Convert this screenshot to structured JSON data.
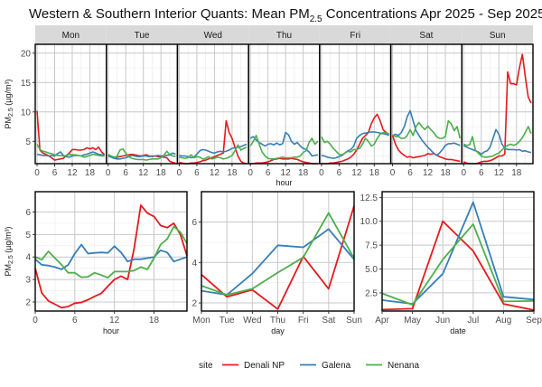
{
  "title": {
    "main": "Western & Southern Interior Quants: Mean PM",
    "sub": "2.5",
    "rest": " Concentrations Apr 2025 - Sep 2025"
  },
  "legend": {
    "title": "site",
    "entries": [
      {
        "label": "Denali NP",
        "color": "#E41A1C"
      },
      {
        "label": "Galena",
        "color": "#377EB8"
      },
      {
        "label": "Nenana",
        "color": "#4DAF4A"
      }
    ],
    "placement": "bottom"
  },
  "chart_data": [
    {
      "type": "line",
      "name": "hour-by-weekday",
      "title": "",
      "xlabel": "hour",
      "ylabel": "PM2.5 (µg/m³)",
      "facets": [
        "Mon",
        "Tue",
        "Wed",
        "Thu",
        "Fri",
        "Sat",
        "Sun"
      ],
      "xticks": [
        0,
        6,
        12,
        18
      ],
      "xlim": [
        0,
        23
      ],
      "ylim": [
        1.2,
        21.5
      ],
      "yticks": [
        5,
        10,
        15,
        20
      ],
      "grid": true,
      "series": [
        {
          "name": "Denali NP",
          "values": {
            "Mon": [
              10.2,
              3.5,
              3.0,
              2.8,
              2.5,
              2.2,
              1.8,
              1.9,
              2.0,
              2.1,
              2.6,
              3.0,
              3.6,
              3.6,
              3.5,
              3.5,
              3.6,
              3.9,
              3.7,
              3.9,
              3.6,
              4.0,
              3.2,
              2.7
            ],
            "Tue": [
              2.5,
              2.4,
              2.2,
              2.3,
              2.4,
              2.5,
              2.6,
              2.7,
              2.8,
              2.7,
              2.6,
              2.5,
              2.6,
              2.7,
              2.5,
              2.4,
              2.5,
              2.4,
              2.4,
              2.3,
              2.2,
              1.6,
              1.4,
              1.3
            ],
            "Wed": [
              1.4,
              1.3,
              1.2,
              1.2,
              1.3,
              1.3,
              1.4,
              1.5,
              1.7,
              1.8,
              2.0,
              2.2,
              2.4,
              2.6,
              2.8,
              3.0,
              8.5,
              6.5,
              5.5,
              4.0,
              2.5,
              1.6,
              1.3,
              1.2
            ],
            "Thu": [
              1.2,
              1.2,
              1.3,
              1.3,
              1.3,
              1.4,
              1.5,
              1.7,
              1.9,
              2.0,
              2.1,
              2.0,
              2.0,
              2.0,
              2.1,
              2.0,
              1.9,
              1.7,
              1.5,
              1.4,
              1.3,
              1.2,
              1.2,
              1.2
            ],
            "Fri": [
              1.2,
              1.2,
              1.2,
              1.3,
              1.3,
              1.4,
              1.5,
              1.6,
              1.8,
              2.0,
              2.3,
              2.8,
              3.5,
              4.5,
              5.5,
              6.0,
              6.5,
              8.0,
              9.0,
              9.6,
              8.5,
              7.0,
              6.5,
              6.2
            ],
            "Sat": [
              6.0,
              4.5,
              3.5,
              3.0,
              2.6,
              2.3,
              2.4,
              2.2,
              2.3,
              2.4,
              2.5,
              2.6,
              2.9,
              2.8,
              2.9,
              2.7,
              2.4,
              2.2,
              2.0,
              1.9,
              1.9,
              1.8,
              1.7,
              1.6
            ],
            "Sun": [
              1.5,
              1.3,
              1.2,
              1.2,
              1.2,
              1.3,
              1.5,
              1.6,
              1.6,
              1.7,
              1.9,
              2.2,
              2.5,
              2.5,
              2.8,
              16.8,
              14.8,
              14.8,
              14.6,
              17.5,
              19.8,
              16.0,
              12.5,
              11.5
            ]
          }
        },
        {
          "name": "Galena",
          "values": {
            "Mon": [
              2.8,
              2.7,
              2.6,
              2.6,
              2.5,
              2.6,
              2.5,
              2.9,
              3.2,
              2.6,
              2.4,
              2.3,
              2.5,
              2.6,
              2.6,
              2.5,
              2.7,
              2.8,
              3.0,
              3.2,
              3.0,
              2.8,
              2.7,
              2.6
            ],
            "Tue": [
              2.5,
              2.3,
              2.1,
              2.0,
              2.0,
              2.1,
              2.2,
              2.4,
              2.6,
              2.5,
              2.4,
              2.4,
              2.5,
              2.5,
              2.4,
              2.5,
              2.5,
              2.6,
              2.5,
              2.6,
              2.6,
              2.7,
              3.0,
              2.8
            ],
            "Wed": [
              2.6,
              2.5,
              2.5,
              2.4,
              2.2,
              2.3,
              2.8,
              3.4,
              3.6,
              3.5,
              3.3,
              3.1,
              3.0,
              3.2,
              3.3,
              3.2,
              3.3,
              3.5,
              3.8,
              3.9,
              4.0,
              4.1,
              4.3,
              4.5
            ],
            "Thu": [
              5.5,
              5.8,
              5.2,
              4.8,
              4.5,
              4.2,
              4.5,
              4.6,
              4.4,
              4.7,
              4.4,
              4.6,
              6.5,
              6.1,
              5.0,
              4.5,
              4.8,
              4.2,
              3.8,
              3.6,
              3.2,
              2.5,
              2.6,
              2.7
            ],
            "Fri": [
              2.6,
              2.5,
              2.3,
              2.2,
              2.1,
              2.2,
              2.4,
              2.6,
              3.0,
              3.4,
              3.6,
              4.2,
              5.5,
              6.0,
              6.3,
              6.4,
              6.5,
              6.6,
              6.6,
              6.5,
              6.4,
              6.3,
              6.2,
              6.0
            ],
            "Sat": [
              6.0,
              6.2,
              6.0,
              6.5,
              7.5,
              9.2,
              10.2,
              8.5,
              6.8,
              6.0,
              5.2,
              4.6,
              4.0,
              3.5,
              3.0,
              2.6,
              3.0,
              3.6,
              4.3,
              4.6,
              4.6,
              4.7,
              4.5,
              4.3
            ],
            "Sun": [
              4.3,
              4.0,
              3.8,
              3.6,
              3.4,
              3.2,
              2.8,
              3.2,
              3.4,
              4.0,
              5.5,
              7.0,
              6.2,
              4.6,
              3.8,
              3.6,
              3.6,
              3.6,
              3.5,
              3.6,
              3.3,
              3.4,
              3.2,
              3.1
            ]
          }
        },
        {
          "name": "Nenana",
          "values": {
            "Mon": [
              4.5,
              3.6,
              3.3,
              3.2,
              3.0,
              2.9,
              2.7,
              2.6,
              2.6,
              2.5,
              2.6,
              2.8,
              2.7,
              2.7,
              2.6,
              2.5,
              2.3,
              2.4,
              2.6,
              2.8,
              2.7,
              2.6,
              2.5,
              2.5
            ],
            "Tue": [
              2.8,
              2.5,
              2.3,
              2.4,
              3.5,
              3.7,
              3.0,
              2.4,
              2.1,
              2.0,
              1.9,
              1.9,
              1.9,
              1.8,
              1.9,
              2.0,
              2.0,
              2.0,
              2.2,
              2.6,
              3.3,
              2.7,
              2.5,
              2.4
            ],
            "Wed": [
              2.3,
              2.2,
              2.1,
              2.2,
              2.7,
              2.2,
              2.4,
              2.3,
              2.0,
              2.1,
              2.4,
              2.0,
              2.1,
              2.3,
              2.2,
              2.0,
              2.1,
              2.3,
              2.6,
              3.4,
              4.4,
              3.5,
              3.8,
              4.0
            ],
            "Thu": [
              4.2,
              5.0,
              6.0,
              4.5,
              3.2,
              2.5,
              2.1,
              2.0,
              2.0,
              2.1,
              2.2,
              2.3,
              2.2,
              2.2,
              2.2,
              2.3,
              2.3,
              2.5,
              3.1,
              3.4,
              4.8,
              5.5,
              4.5,
              5.0
            ],
            "Fri": [
              5.8,
              4.8,
              5.0,
              4.5,
              3.8,
              3.3,
              2.8,
              2.7,
              3.0,
              3.3,
              3.2,
              3.6,
              3.6,
              3.8,
              4.5,
              5.5,
              5.0,
              4.2,
              4.5,
              5.5,
              6.2,
              6.5,
              6.4,
              6.3
            ],
            "Sat": [
              6.1,
              5.8,
              5.8,
              5.5,
              5.5,
              6.0,
              7.0,
              6.0,
              7.5,
              8.2,
              7.5,
              7.0,
              7.6,
              7.0,
              6.5,
              5.8,
              5.5,
              5.5,
              5.8,
              8.5,
              8.0,
              6.8,
              7.5,
              5.5
            ],
            "Sun": [
              4.5,
              4.3,
              4.4,
              5.8,
              3.5,
              3.0,
              2.5,
              2.3,
              2.3,
              2.4,
              2.5,
              2.8,
              3.0,
              3.5,
              4.0,
              4.3,
              4.5,
              4.3,
              4.5,
              5.0,
              5.6,
              6.5,
              7.5,
              6.3
            ]
          }
        }
      ]
    },
    {
      "type": "line",
      "name": "hour",
      "xlabel": "hour",
      "ylabel": "PM2.5 (µg/m³)",
      "x": [
        0,
        1,
        2,
        3,
        4,
        5,
        6,
        7,
        8,
        9,
        10,
        11,
        12,
        13,
        14,
        15,
        16,
        17,
        18,
        19,
        20,
        21,
        22,
        23
      ],
      "xticks": [
        0,
        6,
        12,
        18
      ],
      "xlim": [
        0,
        23
      ],
      "ylim": [
        1.6,
        6.9
      ],
      "yticks": [
        2,
        3,
        4,
        5,
        6
      ],
      "grid": true,
      "series": [
        {
          "name": "Denali NP",
          "values": [
            3.5,
            2.4,
            2.05,
            1.9,
            1.75,
            1.8,
            1.95,
            1.98,
            2.1,
            2.25,
            2.38,
            2.7,
            3.0,
            3.15,
            3.0,
            4.4,
            6.3,
            5.95,
            5.8,
            5.4,
            5.3,
            5.5,
            5.0,
            4.05
          ]
        },
        {
          "name": "Galena",
          "values": [
            3.9,
            3.65,
            3.62,
            3.55,
            3.45,
            3.65,
            4.15,
            4.55,
            4.15,
            4.18,
            4.2,
            4.18,
            4.48,
            4.2,
            3.8,
            3.9,
            3.9,
            3.95,
            4.0,
            4.3,
            4.2,
            3.8,
            3.9,
            4.0
          ]
        },
        {
          "name": "Nenana",
          "values": [
            4.0,
            3.88,
            4.25,
            3.95,
            3.65,
            3.3,
            3.3,
            3.1,
            3.12,
            3.3,
            3.2,
            3.08,
            3.35,
            3.35,
            3.35,
            3.4,
            3.55,
            3.45,
            3.95,
            4.55,
            4.8,
            5.35,
            5.1,
            4.6
          ]
        }
      ]
    },
    {
      "type": "line",
      "name": "day",
      "xlabel": "day",
      "ylabel": "",
      "categories": [
        "Mon",
        "Tue",
        "Wed",
        "Thu",
        "Fri",
        "Sat",
        "Sun"
      ],
      "ylim": [
        1.6,
        7.5
      ],
      "yticks": [
        2,
        4,
        6
      ],
      "grid": true,
      "series": [
        {
          "name": "Denali NP",
          "values": [
            3.4,
            2.3,
            2.65,
            1.7,
            4.3,
            2.7,
            6.8
          ]
        },
        {
          "name": "Galena",
          "values": [
            2.6,
            2.4,
            3.45,
            4.85,
            4.75,
            5.65,
            4.15
          ]
        },
        {
          "name": "Nenana",
          "values": [
            2.85,
            2.4,
            2.7,
            3.5,
            4.25,
            6.45,
            4.2
          ]
        }
      ]
    },
    {
      "type": "line",
      "name": "date",
      "xlabel": "date",
      "ylabel": "",
      "categories": [
        "Apr",
        "May",
        "Jun",
        "Jul",
        "Aug",
        "Sep"
      ],
      "ylim": [
        0.6,
        13.1
      ],
      "yticks": [
        2.5,
        5.0,
        7.5,
        10.0,
        12.5
      ],
      "ytick_labels": [
        "2.5",
        "5.0",
        "7.5",
        "10.0",
        "12.5"
      ],
      "grid": true,
      "series": [
        {
          "name": "Denali NP",
          "values": [
            0.75,
            0.85,
            10.0,
            6.9,
            1.35,
            0.7
          ]
        },
        {
          "name": "Galena",
          "values": [
            1.75,
            1.35,
            4.5,
            12.0,
            2.1,
            1.8
          ]
        },
        {
          "name": "Nenana",
          "values": [
            2.45,
            1.25,
            6.0,
            9.7,
            1.6,
            1.65
          ]
        }
      ]
    }
  ]
}
